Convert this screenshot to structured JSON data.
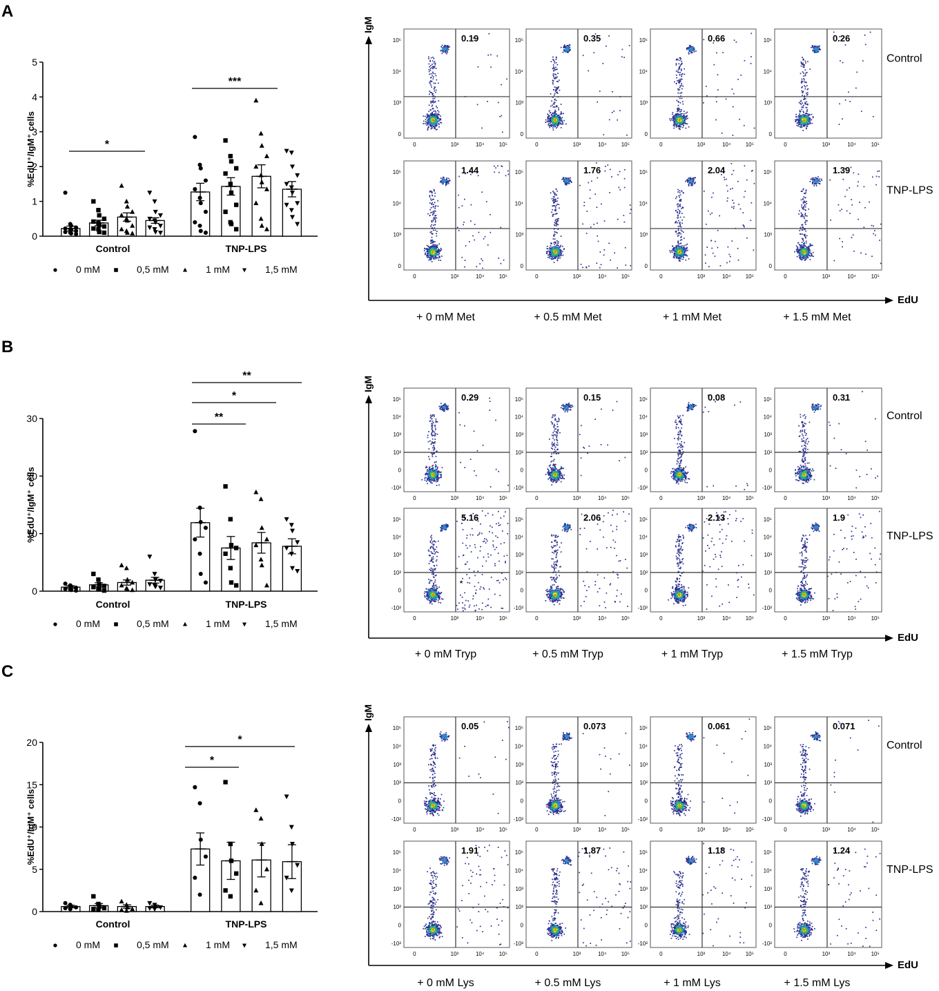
{
  "panels": [
    {
      "letter": "A",
      "bar_chart": {
        "type": "bar",
        "ylabel": "%EdU⁺/IgM⁺ cells",
        "ylim": [
          0,
          5
        ],
        "yticks": [
          "0",
          "1",
          "2",
          "3",
          "4",
          "5"
        ],
        "groups": [
          "Control",
          "TNP-LPS"
        ],
        "legend": [
          "0 mM",
          "0,5 mM",
          "1 mM",
          "1,5 mM"
        ],
        "series": [
          {
            "name": "0 mM",
            "values": [
              0.22,
              1.27
            ],
            "errors": [
              0.07,
              0.25
            ],
            "points": [
              [
                1.25,
                0.35,
                0.3,
                0.25,
                0.22,
                0.2,
                0.18,
                0.15,
                0.12,
                0.1,
                0.08,
                0.06
              ],
              [
                2.85,
                2.05,
                1.95,
                1.6,
                1.35,
                1.1,
                0.95,
                0.7,
                0.4,
                0.3,
                0.15,
                0.1
              ]
            ]
          },
          {
            "name": "0,5 mM",
            "values": [
              0.38,
              1.43
            ],
            "errors": [
              0.08,
              0.25
            ],
            "points": [
              [
                1.0,
                0.75,
                0.6,
                0.5,
                0.42,
                0.38,
                0.32,
                0.28,
                0.22,
                0.2,
                0.12,
                0.1
              ],
              [
                2.75,
                2.3,
                2.15,
                1.95,
                1.8,
                1.5,
                1.25,
                0.9,
                0.7,
                0.4,
                0.35,
                0.2
              ]
            ]
          },
          {
            "name": "1 mM",
            "values": [
              0.55,
              1.72
            ],
            "errors": [
              0.12,
              0.33
            ],
            "points": [
              [
                1.45,
                1.0,
                0.85,
                0.7,
                0.6,
                0.5,
                0.45,
                0.3,
                0.2,
                0.15,
                0.1,
                0.08
              ],
              [
                3.9,
                2.95,
                2.6,
                2.3,
                2.0,
                1.75,
                1.55,
                1.35,
                0.95,
                0.5,
                0.3,
                0.2
              ]
            ]
          },
          {
            "name": "1,5 mM",
            "values": [
              0.45,
              1.35
            ],
            "errors": [
              0.08,
              0.22
            ],
            "points": [
              [
                1.25,
                1.0,
                0.7,
                0.6,
                0.5,
                0.45,
                0.4,
                0.3,
                0.25,
                0.2,
                0.12,
                0.1
              ],
              [
                2.45,
                2.4,
                2.0,
                1.75,
                1.5,
                1.4,
                1.25,
                0.95,
                0.9,
                0.75,
                0.55,
                0.35
              ]
            ]
          }
        ],
        "significance": [
          {
            "label": "*",
            "from": "Control 0 mM",
            "to": "Control 1 mM"
          },
          {
            "label": "***",
            "from": "TNP-LPS 0 mM",
            "to": "TNP-LPS 1,5 mM"
          }
        ]
      },
      "flow": {
        "y_axis": "IgM",
        "x_axis": "EdU",
        "row_labels": [
          "Control",
          "TNP-LPS"
        ],
        "column_labels": [
          "+ 0 mM Met",
          "+ 0.5 mM Met",
          "+ 1 mM Met",
          "+ 1.5 mM Met"
        ],
        "quadrant_values": [
          [
            "0.19",
            "0.35",
            "0.66",
            "0.26"
          ],
          [
            "1.44",
            "1.76",
            "2.04",
            "1.39"
          ]
        ],
        "y_ticks": [
          "0",
          "10³",
          "10⁴",
          "10⁵"
        ],
        "x_ticks": [
          "0",
          "10³",
          "10⁴",
          "10⁵"
        ]
      }
    },
    {
      "letter": "B",
      "bar_chart": {
        "type": "bar",
        "ylabel": "%EdU⁺/IgM⁺ cells",
        "ylim": [
          0,
          30
        ],
        "yticks": [
          "0",
          "10",
          "20",
          "30"
        ],
        "groups": [
          "Control",
          "TNP-LPS"
        ],
        "legend": [
          "0 mM",
          "0,5 mM",
          "1 mM",
          "1,5 mM"
        ],
        "series": [
          {
            "name": "0 mM",
            "values": [
              0.7,
              11.9
            ],
            "errors": [
              0.25,
              2.5
            ],
            "points": [
              [
                1.3,
                1.0,
                0.8,
                0.6,
                0.4,
                0.3,
                0.2,
                0.1
              ],
              [
                27.8,
                14.5,
                12.0,
                11.0,
                9.0,
                6.5,
                3.0,
                1.5
              ]
            ]
          },
          {
            "name": "0,5 mM",
            "values": [
              1.1,
              7.5
            ],
            "errors": [
              0.35,
              2.0
            ],
            "points": [
              [
                3.0,
                2.0,
                1.2,
                0.9,
                0.7,
                0.4,
                0.3,
                0.1
              ],
              [
                18.2,
                12.5,
                8.0,
                7.5,
                6.5,
                4.0,
                1.5,
                1.0
              ]
            ]
          },
          {
            "name": "1 mM",
            "values": [
              1.5,
              8.4
            ],
            "errors": [
              0.45,
              1.8
            ],
            "points": [
              [
                4.5,
                4.0,
                2.0,
                1.5,
                1.0,
                0.5,
                0.3,
                0.2
              ],
              [
                17.2,
                16.0,
                11.0,
                9.0,
                8.0,
                5.5,
                4.5,
                1.0
              ]
            ]
          },
          {
            "name": "1,5 mM",
            "values": [
              1.9,
              7.8
            ],
            "errors": [
              0.5,
              1.3
            ],
            "points": [
              [
                6.0,
                3.0,
                2.0,
                1.8,
                1.2,
                1.0,
                0.8,
                0.6
              ],
              [
                12.5,
                11.5,
                10.5,
                8.5,
                7.5,
                6.5,
                4.0,
                3.5
              ]
            ]
          }
        ],
        "significance": [
          {
            "label": "**",
            "from": "TNP-LPS 0 mM",
            "to": "TNP-LPS 0,5 mM"
          },
          {
            "label": "*",
            "from": "TNP-LPS 0 mM",
            "to": "TNP-LPS 1 mM"
          },
          {
            "label": "**",
            "from": "TNP-LPS 0 mM",
            "to": "TNP-LPS 1,5 mM"
          }
        ]
      },
      "flow": {
        "y_axis": "IgM",
        "x_axis": "EdU",
        "row_labels": [
          "Control",
          "TNP-LPS"
        ],
        "column_labels": [
          "+ 0 mM Tryp",
          "+ 0.5 mM Tryp",
          "+ 1 mM Tryp",
          "+ 1.5 mM Tryp"
        ],
        "quadrant_values": [
          [
            "0.29",
            "0.15",
            "0.08",
            "0.31"
          ],
          [
            "5.16",
            "2.06",
            "2.13",
            "1.9"
          ]
        ],
        "y_ticks": [
          "-10²",
          "0",
          "10²",
          "10³",
          "10⁴",
          "10⁵"
        ],
        "x_ticks": [
          "0",
          "10³",
          "10⁴",
          "10⁵"
        ],
        "annotation": "*"
      }
    },
    {
      "letter": "C",
      "bar_chart": {
        "type": "bar",
        "ylabel": "%EdU⁺/IgM⁺ cells",
        "ylim": [
          0,
          20
        ],
        "yticks": [
          "0",
          "5",
          "10",
          "15",
          "20"
        ],
        "groups": [
          "Control",
          "TNP-LPS"
        ],
        "legend": [
          "0 mM",
          "0,5 mM",
          "1 mM",
          "1,5 mM"
        ],
        "series": [
          {
            "name": "0 mM",
            "values": [
              0.6,
              7.4
            ],
            "errors": [
              0.15,
              1.9
            ],
            "points": [
              [
                1.0,
                0.8,
                0.6,
                0.5,
                0.4,
                0.3
              ],
              [
                14.7,
                12.8,
                8.5,
                6.5,
                4.0,
                2.0
              ]
            ]
          },
          {
            "name": "0,5 mM",
            "values": [
              0.7,
              6.0
            ],
            "errors": [
              0.25,
              2.2
            ],
            "points": [
              [
                1.8,
                0.9,
                0.6,
                0.4,
                0.3,
                0.2
              ],
              [
                15.3,
                8.0,
                6.0,
                4.5,
                2.5,
                1.8
              ]
            ]
          },
          {
            "name": "1 mM",
            "values": [
              0.6,
              6.1
            ],
            "errors": [
              0.2,
              2.0
            ],
            "points": [
              [
                1.2,
                0.8,
                0.5,
                0.3,
                0.2,
                0.1
              ],
              [
                12.0,
                11.0,
                8.0,
                5.0,
                2.5,
                1.0
              ]
            ]
          },
          {
            "name": "1,5 mM",
            "values": [
              0.6,
              5.9
            ],
            "errors": [
              0.15,
              2.0
            ],
            "points": [
              [
                1.0,
                0.8,
                0.6,
                0.5,
                0.4,
                0.3
              ],
              [
                13.6,
                10.0,
                8.0,
                5.5,
                4.0,
                2.5
              ]
            ]
          }
        ],
        "significance": [
          {
            "label": "*",
            "from": "TNP-LPS 0 mM",
            "to": "TNP-LPS 0,5 mM"
          },
          {
            "label": "*",
            "from": "TNP-LPS 0 mM",
            "to": "TNP-LPS 1,5 mM"
          }
        ]
      },
      "flow": {
        "y_axis": "IgM",
        "x_axis": "EdU",
        "row_labels": [
          "Control",
          "TNP-LPS"
        ],
        "column_labels": [
          "+ 0 mM Lys",
          "+ 0.5 mM Lys",
          "+ 1 mM Lys",
          "+ 1.5 mM Lys"
        ],
        "quadrant_values": [
          [
            "0.05",
            "0.073",
            "0.061",
            "0.071"
          ],
          [
            "1.91",
            "1.87",
            "1.18",
            "1.24"
          ]
        ],
        "y_ticks": [
          "-10²",
          "0",
          "10²",
          "10³",
          "10⁴",
          "10⁵"
        ],
        "x_ticks": [
          "0",
          "10³",
          "10⁴",
          "10⁵"
        ]
      }
    }
  ],
  "colors": {
    "ink": "#000000",
    "bar_fill": "#ffffff",
    "frame": "#555555",
    "gate": "#333333",
    "dot_sparse": "#2a2f8c",
    "dot_mid": "#2c8fd1",
    "dot_dense": "#3fc43a",
    "dot_core": "#e2ee1a",
    "dot_peak": "#f07818"
  }
}
